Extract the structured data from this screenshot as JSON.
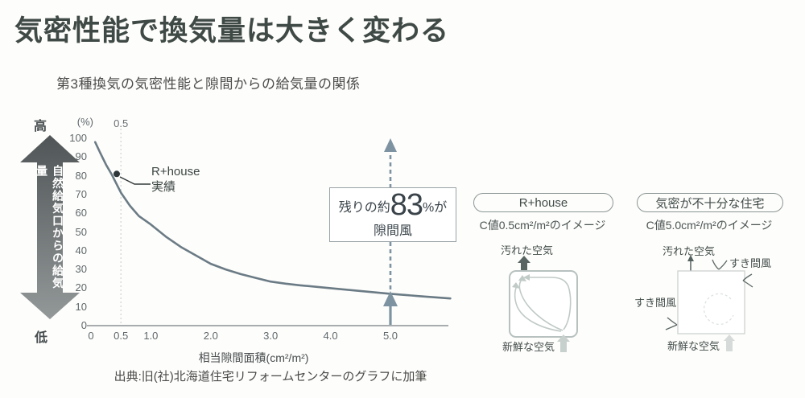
{
  "page": {
    "title": "気密性能で換気量は大きく変わる",
    "subtitle": "第3種換気の気密性能と隙間からの給気量の関係",
    "source": "出典:旧(社)北海道住宅リフォームセンターのグラフに加筆"
  },
  "left_axis_arrow": {
    "top_label": "高",
    "bottom_label": "低",
    "label": "自然給気口からの給気量"
  },
  "chart_data": {
    "type": "line",
    "title": "第3種換気の気密性能と隙間からの給気量の関係",
    "xlabel": "相当隙間面積(cm²/m²)",
    "ylabel": "(%)",
    "xlim": [
      0,
      6.05
    ],
    "ylim": [
      0,
      100
    ],
    "grid": false,
    "x_ticks": [
      "0",
      "0.5",
      "1.0",
      "2.0",
      "3.0",
      "4.0",
      "5.0"
    ],
    "x_tick_values": [
      0,
      0.5,
      1.0,
      2.0,
      3.0,
      4.0,
      5.0
    ],
    "y_ticks": [
      100,
      90,
      80,
      70,
      60,
      50,
      40,
      30,
      20,
      10,
      0
    ],
    "series": [
      {
        "name": "R+house 実績",
        "points": [
          [
            0.07,
            98
          ],
          [
            0.15,
            92.5
          ],
          [
            0.25,
            86
          ],
          [
            0.35,
            80.5
          ],
          [
            0.5,
            71
          ],
          [
            0.65,
            64
          ],
          [
            0.8,
            58.5
          ],
          [
            1.0,
            54
          ],
          [
            1.25,
            47.5
          ],
          [
            1.5,
            42
          ],
          [
            1.75,
            37.5
          ],
          [
            2.0,
            33
          ],
          [
            2.25,
            30
          ],
          [
            2.5,
            27.5
          ],
          [
            2.75,
            25.5
          ],
          [
            3.0,
            23.5
          ],
          [
            3.25,
            22.4
          ],
          [
            3.5,
            21.5
          ],
          [
            4.0,
            20
          ],
          [
            4.5,
            18.5
          ],
          [
            5.0,
            17
          ],
          [
            5.5,
            15.7
          ],
          [
            6.0,
            14.5
          ]
        ]
      }
    ],
    "reference_line_x": 0.5,
    "reference_line_label": "0.5",
    "arrow_x": 5.0,
    "value_at_arrow_pct": 17,
    "curve_label": {
      "line1": "R+house",
      "line2": "実績",
      "dot_x": 0.43,
      "dot_y": 81
    },
    "annotation": {
      "prefix": "残りの約",
      "value": "83",
      "suffix": "%が",
      "line2": "隙間風"
    }
  },
  "panels": [
    {
      "pill": "R+house",
      "caption": "C値0.5cm²/m²のイメージ",
      "top_air": "汚れた空気",
      "bottom_air": "新鮮な空気"
    },
    {
      "pill": "気密が不十分な住宅",
      "caption": "C値5.0cm²/m²のイメージ",
      "top_air": "汚れた空気",
      "bottom_air": "新鮮な空気",
      "draft_top": "すき間風",
      "draft_left": "すき間風"
    }
  ],
  "colors": {
    "title": "#3f4945",
    "curve": "#6b7b85",
    "arrow_accent": "#7e93a1",
    "axis": "#8d9294",
    "gradient_arrow_top": "#505557",
    "gradient_arrow_bottom": "#939899"
  }
}
